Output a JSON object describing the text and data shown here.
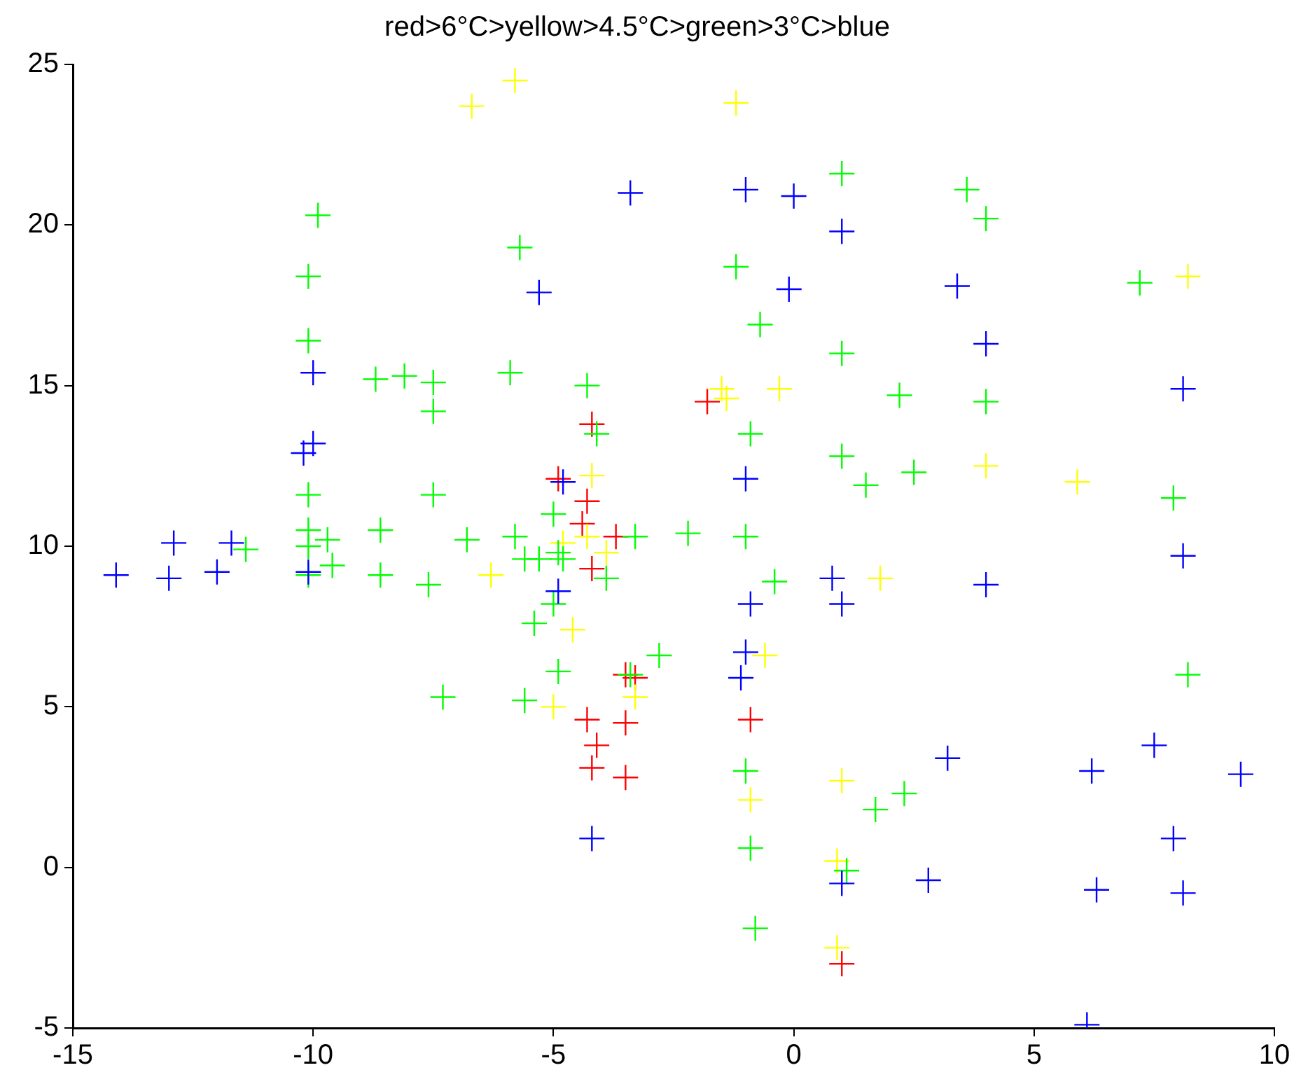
{
  "chart_data": {
    "type": "scatter",
    "title": "red>6°C>yellow>4.5°C>green>3°C>blue",
    "xlim": [
      -15,
      10
    ],
    "xticks": [
      -15,
      -10,
      -5,
      0,
      5,
      10
    ],
    "ylim": [
      -5,
      25
    ],
    "yticks": [
      -5,
      0,
      5,
      10,
      15,
      20,
      25
    ],
    "grid": false,
    "legend": false,
    "marker": "cross",
    "series": [
      {
        "color": "#0000ff",
        "x": [
          -14.1,
          -13.0,
          -12.9,
          -12.0,
          -11.7,
          -10.1,
          -10.2,
          -10.0,
          -10.0,
          -5.3,
          -3.4,
          -4.8,
          -4.9,
          -4.2,
          -1.0,
          0.0,
          1.0,
          -0.1,
          -1.0,
          0.8,
          1.0,
          -0.9,
          -1.0,
          -1.1,
          1.0,
          3.4,
          4.0,
          8.1,
          8.1,
          4.0,
          3.2,
          7.5,
          6.2,
          9.3,
          7.9,
          2.8,
          6.3,
          8.1,
          6.1
        ],
        "values": [
          9.1,
          9.0,
          10.1,
          9.2,
          10.1,
          9.2,
          12.9,
          15.4,
          13.2,
          17.9,
          21.0,
          12.0,
          8.6,
          0.9,
          21.1,
          20.9,
          19.8,
          18.0,
          12.1,
          9.0,
          8.2,
          8.2,
          6.7,
          5.9,
          -0.5,
          18.1,
          16.3,
          14.9,
          9.7,
          8.8,
          3.4,
          3.8,
          3.0,
          2.9,
          0.9,
          -0.4,
          -0.7,
          -0.8,
          -4.9
        ]
      },
      {
        "color": "#00ff00",
        "x": [
          -9.9,
          -10.1,
          -10.1,
          -8.7,
          -8.1,
          -7.5,
          -7.5,
          -10.1,
          -7.5,
          -10.1,
          -9.7,
          -8.6,
          -6.8,
          -11.4,
          -10.1,
          -9.6,
          -8.6,
          -7.6,
          -7.3,
          -10.1,
          -5.7,
          -1.2,
          1.0,
          -0.7,
          1.0,
          -5.9,
          -4.3,
          -4.1,
          -0.9,
          1.0,
          1.5,
          -5.0,
          2.2,
          3.6,
          4.0,
          7.2,
          4.0,
          2.5,
          7.9,
          8.2,
          2.3,
          -5.8,
          -3.3,
          -2.2,
          -1.0,
          -5.6,
          -5.3,
          -4.9,
          -4.8,
          -3.9,
          -5.0,
          -5.4,
          -0.4,
          -2.8,
          -4.9,
          -3.4,
          -5.6,
          -1.0,
          -0.9,
          1.1,
          1.7,
          -0.8
        ],
        "values": [
          20.3,
          18.4,
          16.4,
          15.2,
          15.3,
          15.1,
          14.2,
          11.6,
          11.6,
          10.5,
          10.2,
          10.5,
          10.2,
          9.9,
          10.0,
          9.4,
          9.1,
          8.8,
          5.3,
          9.1,
          19.3,
          18.7,
          21.6,
          16.9,
          16.0,
          15.4,
          15.0,
          13.5,
          13.5,
          12.8,
          11.9,
          11.0,
          14.7,
          21.1,
          20.2,
          18.2,
          14.5,
          12.3,
          11.5,
          6.0,
          2.3,
          10.3,
          10.3,
          10.4,
          10.3,
          9.6,
          9.6,
          9.8,
          9.6,
          9.0,
          8.2,
          7.6,
          8.9,
          6.6,
          6.1,
          6.0,
          5.2,
          3.0,
          0.6,
          -0.1,
          1.8,
          -1.9
        ]
      },
      {
        "color": "#ffff00",
        "x": [
          -6.7,
          -5.8,
          -1.2,
          -1.5,
          -1.4,
          -0.3,
          -4.2,
          8.2,
          4.0,
          5.9,
          -4.8,
          -4.3,
          -3.9,
          -6.3,
          1.8,
          -4.6,
          -0.6,
          -3.3,
          -5.0,
          1.0,
          -0.9,
          0.9,
          0.9
        ],
        "values": [
          23.7,
          24.5,
          23.8,
          14.9,
          14.6,
          14.9,
          12.2,
          18.4,
          12.5,
          12.0,
          10.1,
          10.3,
          9.8,
          9.1,
          9.0,
          7.4,
          6.6,
          5.3,
          5.0,
          2.7,
          2.1,
          0.2,
          -2.5
        ]
      },
      {
        "color": "#ff0000",
        "x": [
          -1.8,
          -4.2,
          -4.9,
          -4.3,
          -4.4,
          -3.7,
          -4.2,
          -3.5,
          -3.3,
          -4.3,
          -3.5,
          -4.1,
          -4.2,
          -3.5,
          -0.9,
          1.0
        ],
        "values": [
          14.5,
          13.8,
          12.1,
          11.4,
          10.7,
          10.3,
          9.3,
          6.0,
          5.9,
          4.6,
          4.5,
          3.8,
          3.1,
          2.8,
          4.6,
          -3.0
        ]
      }
    ]
  }
}
